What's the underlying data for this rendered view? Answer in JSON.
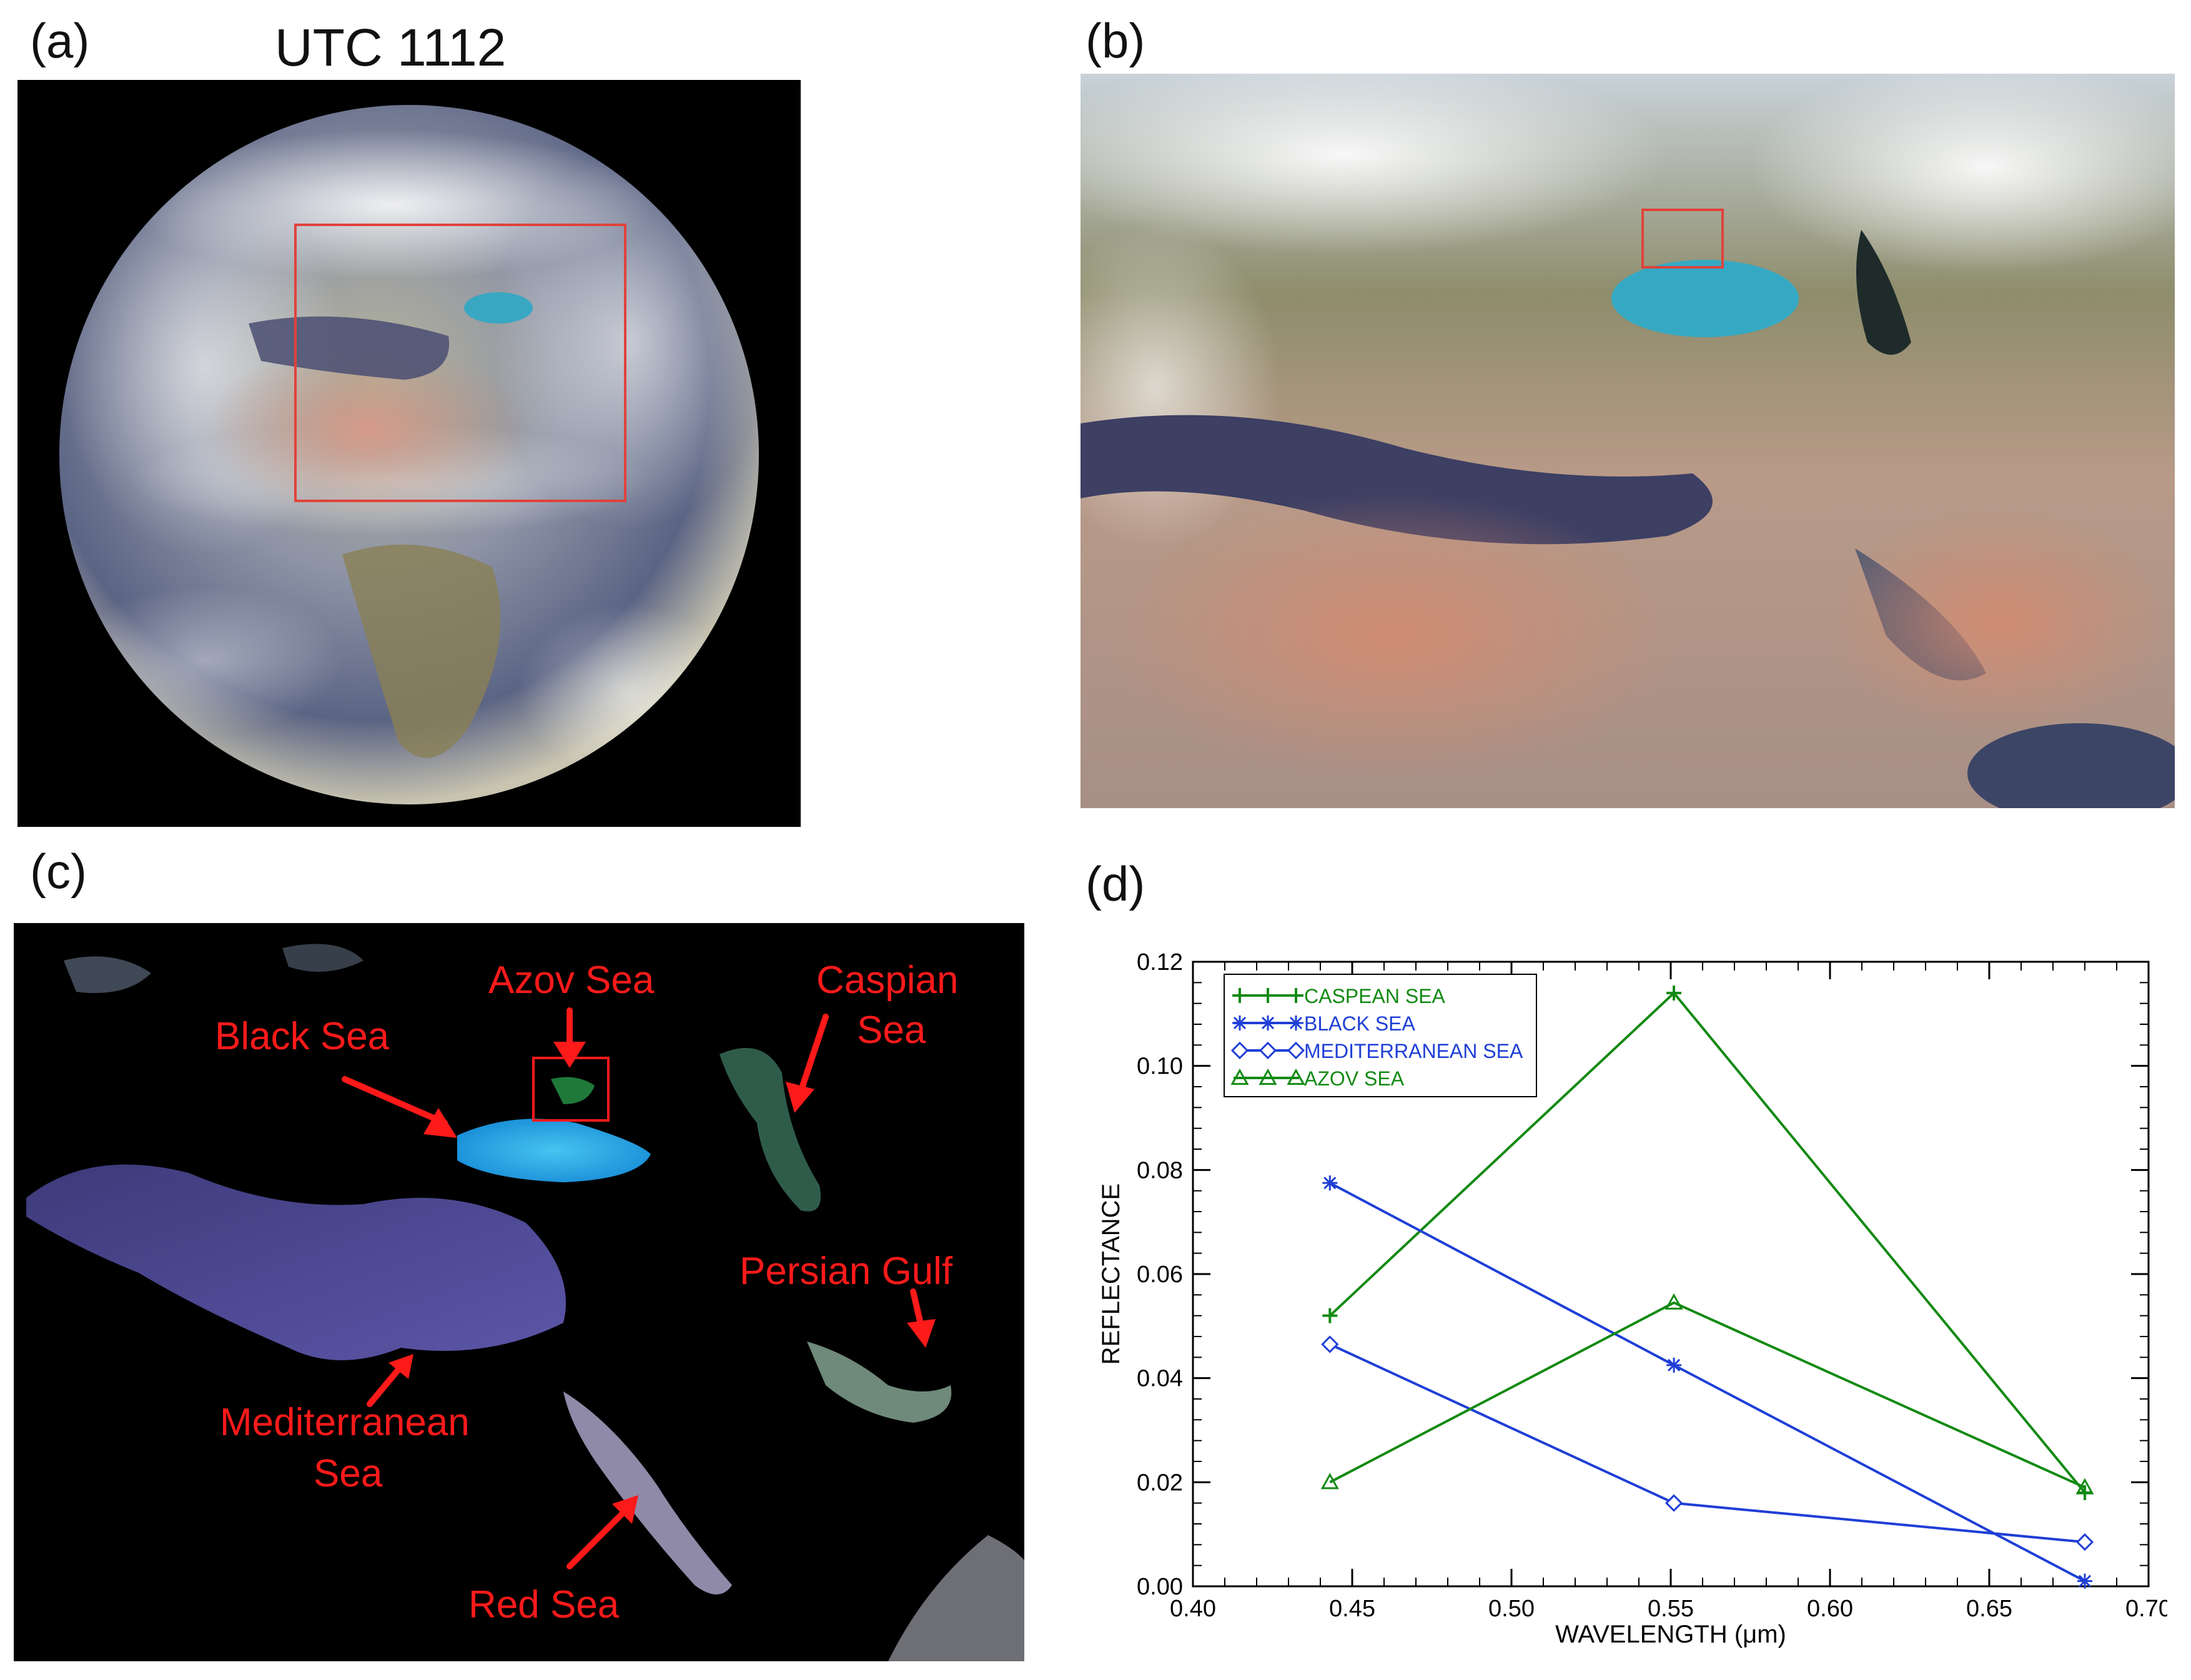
{
  "panels": {
    "a": {
      "label": "(a)",
      "time_label": "UTC 1112"
    },
    "b": {
      "label": "(b)"
    },
    "c": {
      "label": "(c)",
      "annotations": {
        "azov": "Azov Sea",
        "black": "Black Sea",
        "caspian_1": "Caspian",
        "caspian_2": "Sea",
        "persian": "Persian Gulf",
        "med_1": "Mediterranean",
        "med_2": "Sea",
        "red": "Red Sea"
      }
    },
    "d": {
      "label": "(d)"
    }
  },
  "colors": {
    "annotation_red": "#ff1a1a",
    "series_green": "#138a13",
    "series_blue": "#1f3fd6"
  },
  "chart_data": {
    "type": "line",
    "xlabel": "WAVELENGTH (μm)",
    "ylabel": "REFLECTANCE",
    "xlim": [
      0.4,
      0.7
    ],
    "ylim": [
      0.0,
      0.12
    ],
    "x_ticks": [
      "0.40",
      "0.45",
      "0.50",
      "0.55",
      "0.60",
      "0.65",
      "0.70"
    ],
    "y_ticks": [
      "0.00",
      "0.02",
      "0.04",
      "0.06",
      "0.08",
      "0.10",
      "0.12"
    ],
    "x": [
      0.443,
      0.551,
      0.68
    ],
    "legend_position": "top-left",
    "grid": false,
    "series": [
      {
        "name": "CASPEAN SEA",
        "marker": "plus",
        "color": "#138a13",
        "values": [
          0.052,
          0.114,
          0.018
        ]
      },
      {
        "name": "BLACK SEA",
        "marker": "asterisk",
        "color": "#1f3fd6",
        "values": [
          0.0775,
          0.0425,
          0.001
        ]
      },
      {
        "name": "MEDITERRANEAN SEA",
        "marker": "diamond",
        "color": "#1f3fd6",
        "values": [
          0.0465,
          0.016,
          0.0085
        ]
      },
      {
        "name": "AZOV SEA",
        "marker": "triangle",
        "color": "#138a13",
        "values": [
          0.02,
          0.0545,
          0.019
        ]
      }
    ]
  }
}
